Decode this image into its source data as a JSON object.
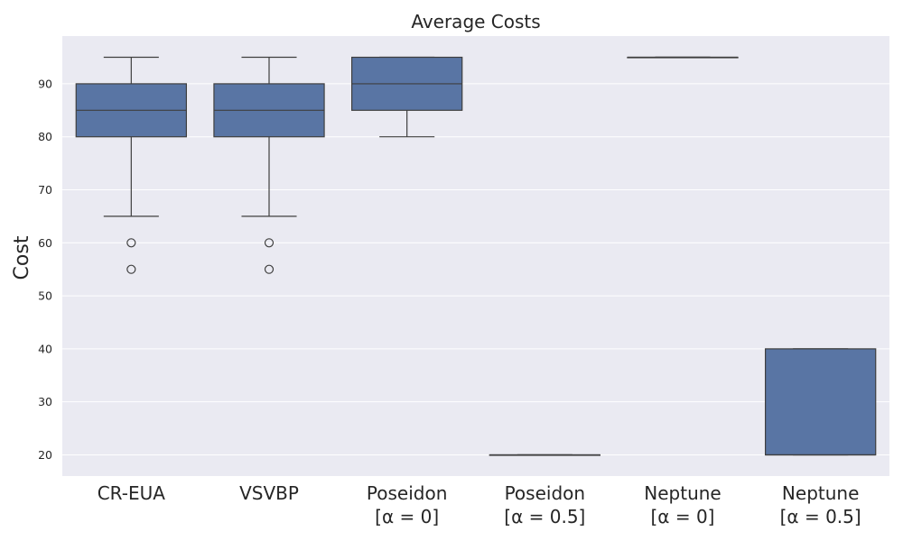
{
  "chart_data": {
    "type": "box",
    "title": "Average Costs",
    "xlabel": "",
    "ylabel": "Cost",
    "ylim": [
      16,
      99
    ],
    "yticks": [
      20,
      30,
      40,
      50,
      60,
      70,
      80,
      90
    ],
    "grid": true,
    "box_color": "#5975a4",
    "edge_color": "#3f3f3f",
    "background": "#eaeaf2",
    "categories": [
      {
        "line1": "CR-EUA",
        "line2": ""
      },
      {
        "line1": "VSVBP",
        "line2": ""
      },
      {
        "line1": "Poseidon",
        "line2": "[α = 0]"
      },
      {
        "line1": "Poseidon",
        "line2": "[α = 0.5]"
      },
      {
        "line1": "Neptune",
        "line2": "[α = 0]"
      },
      {
        "line1": "Neptune",
        "line2": "[α = 0.5]"
      }
    ],
    "boxes": [
      {
        "whisker_low": 65,
        "q1": 80,
        "median": 85,
        "q3": 90,
        "whisker_high": 95,
        "outliers": [
          60,
          55
        ]
      },
      {
        "whisker_low": 65,
        "q1": 80,
        "median": 85,
        "q3": 90,
        "whisker_high": 95,
        "outliers": [
          60,
          55
        ]
      },
      {
        "whisker_low": 80,
        "q1": 85,
        "median": 90,
        "q3": 95,
        "whisker_high": 95,
        "outliers": []
      },
      {
        "whisker_low": 20,
        "q1": 20,
        "median": 20,
        "q3": 20,
        "whisker_high": 20,
        "outliers": []
      },
      {
        "whisker_low": 95,
        "q1": 95,
        "median": 95,
        "q3": 95,
        "whisker_high": 95,
        "outliers": []
      },
      {
        "whisker_low": 20,
        "q1": 20,
        "median": 20,
        "q3": 40,
        "whisker_high": 40,
        "outliers": []
      }
    ]
  }
}
